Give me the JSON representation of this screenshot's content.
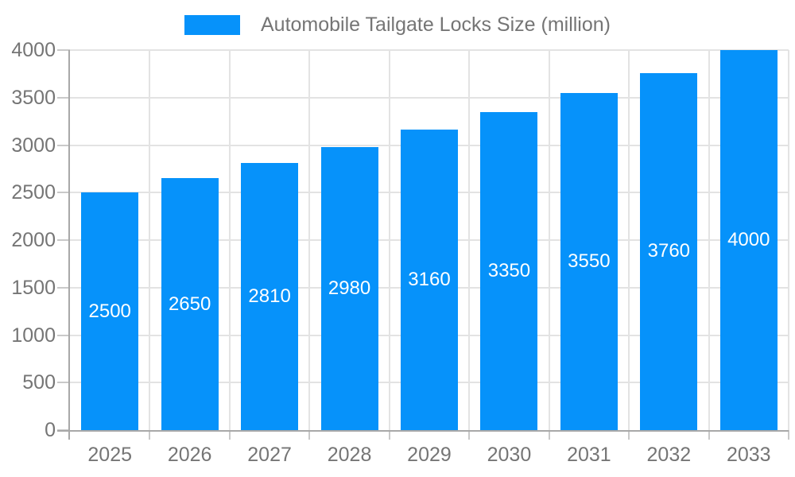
{
  "chart_data": {
    "type": "bar",
    "series_name": "Automobile Tailgate Locks Size (million)",
    "categories": [
      "2025",
      "2026",
      "2027",
      "2028",
      "2029",
      "2030",
      "2031",
      "2032",
      "2033"
    ],
    "values": [
      2500,
      2650,
      2810,
      2980,
      3160,
      3350,
      3550,
      3760,
      4000
    ],
    "title": "Automobile Tailgate Locks Size (million)",
    "xlabel": "",
    "ylabel": "",
    "ylim": [
      0,
      4000
    ],
    "ytick_step": 500,
    "yticks": [
      0,
      500,
      1000,
      1500,
      2000,
      2500,
      3000,
      3500,
      4000
    ],
    "grid": true,
    "legend_position": "top-center",
    "bar_value_labels_inside": true,
    "colors": {
      "bar": "#0692fa",
      "bar_value_label": "#ffffff",
      "axis_line": "#a8a8a8",
      "grid_line": "#e3e3e3",
      "tick_mark": "#c9c9c9",
      "tick_label": "#757575",
      "legend_text": "#757575",
      "background": "#ffffff"
    }
  }
}
